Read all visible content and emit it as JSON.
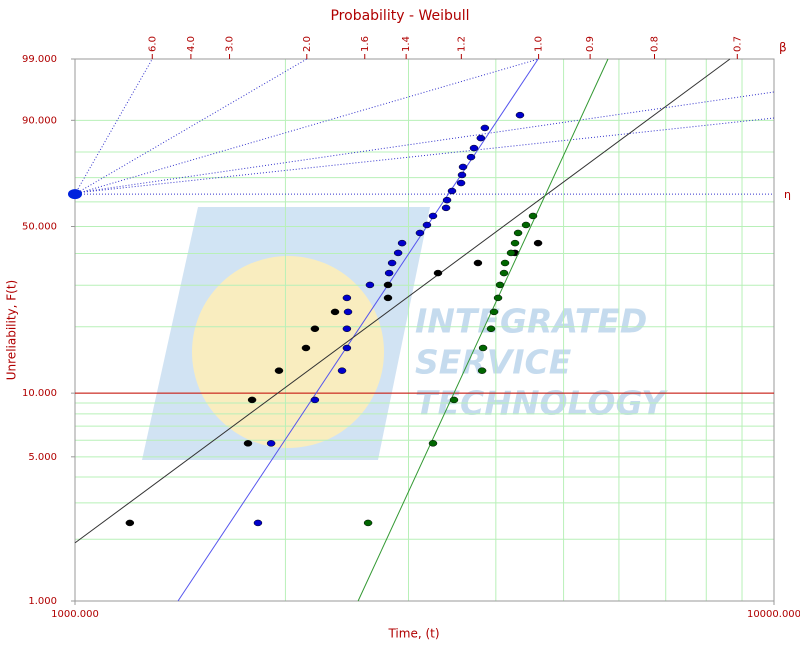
{
  "chart_data": {
    "type": "scatter",
    "title": "Probability - Weibull",
    "x_label": "Time, (t)",
    "y_label": "Unreliability, F(t)",
    "x_scale": "log",
    "y_scale": "weibull",
    "xlim": [
      1000,
      10000
    ],
    "ylim": [
      1,
      99
    ],
    "xticks": [
      {
        "value": 1000,
        "label": "1000.000"
      },
      {
        "value": 10000,
        "label": "10000.000"
      }
    ],
    "yticks": [
      {
        "value": 1,
        "label": "1.000"
      },
      {
        "value": 5,
        "label": "5.000"
      },
      {
        "value": 10,
        "label": "10.000"
      },
      {
        "value": 50,
        "label": "50.000"
      },
      {
        "value": 90,
        "label": "90.000"
      },
      {
        "value": 99,
        "label": "99.000"
      }
    ],
    "xgrid": [
      2000,
      3000,
      4000,
      5000,
      6000,
      7000,
      8000,
      9000
    ],
    "ygrid": [
      2,
      3,
      4,
      5,
      6,
      7,
      8,
      9,
      10,
      20,
      30,
      40,
      50,
      60,
      70,
      80,
      90,
      99
    ],
    "grid": true,
    "grid_color": "#b8f0b8",
    "beta_axis": {
      "label": "β",
      "ticks": [
        {
          "value": 6,
          "label": "6.0"
        },
        {
          "value": 4,
          "label": "4.0"
        },
        {
          "value": 3,
          "label": "3.0"
        },
        {
          "value": 2,
          "label": "2.0"
        },
        {
          "value": 1.6,
          "label": "1.6"
        },
        {
          "value": 1.4,
          "label": "1.4"
        },
        {
          "value": 1.2,
          "label": "1.2"
        },
        {
          "value": 1,
          "label": "1.0"
        },
        {
          "value": 0.9,
          "label": "0.9"
        },
        {
          "value": 0.8,
          "label": "0.8"
        },
        {
          "value": 0.7,
          "label": "0.7"
        }
      ]
    },
    "eta_label": "η",
    "reference_line": {
      "value": 10,
      "color": "#cc0000"
    },
    "watermark": [
      "INTEGRATED",
      "SERVICE",
      "TECHNOLOGY"
    ],
    "series": [
      {
        "color": "#0000cc",
        "fit_color": "#5555ee",
        "x": [
          1827,
          1908,
          2204,
          2410,
          2449,
          2449,
          2458,
          2449,
          2642,
          2814,
          2842,
          2899,
          2937,
          3115,
          3188,
          3252,
          3395,
          3406,
          3462,
          3567,
          3578,
          3590,
          3686,
          3722,
          3807,
          3858,
          4331
        ],
        "values": [
          2.4,
          5.8,
          9.3,
          12.7,
          16.1,
          19.6,
          23.2,
          26.6,
          30.1,
          33.6,
          36.8,
          40.2,
          43.7,
          47.5,
          50.6,
          54.2,
          57.5,
          60.7,
          64.5,
          67.8,
          71.1,
          74.3,
          78.1,
          81.4,
          84.8,
          87.9,
          91.3
        ],
        "fit": {
          "x": [
            1404,
            4597
          ],
          "values": [
            1,
            99
          ]
        }
      },
      {
        "color": "#000000",
        "fit_color": "#333333",
        "x": [
          1198,
          1768,
          1792,
          1958,
          2140,
          2204,
          2355,
          2804,
          2804,
          3306,
          3771,
          4261,
          4597
        ],
        "values": [
          2.4,
          5.8,
          9.3,
          12.7,
          16.1,
          19.6,
          23.2,
          26.6,
          30.1,
          33.6,
          36.8,
          40.2,
          43.7
        ],
        "fit": {
          "x": [
            1000,
            8650
          ],
          "values": [
            1.92,
            99
          ]
        }
      },
      {
        "color": "#006600",
        "fit_color": "#339933",
        "x": [
          2626,
          3252,
          3485,
          3823,
          3835,
          3937,
          3976,
          4029,
          4055,
          4109,
          4123,
          4205,
          4261,
          4304,
          4418,
          4521
        ],
        "values": [
          2.4,
          5.8,
          9.3,
          12.7,
          16.1,
          19.6,
          23.2,
          26.6,
          30.1,
          33.6,
          36.8,
          40.2,
          43.7,
          47.5,
          50.6,
          54.2
        ],
        "fit": {
          "x": [
            2541,
            5788
          ],
          "values": [
            1,
            99
          ]
        }
      }
    ]
  }
}
